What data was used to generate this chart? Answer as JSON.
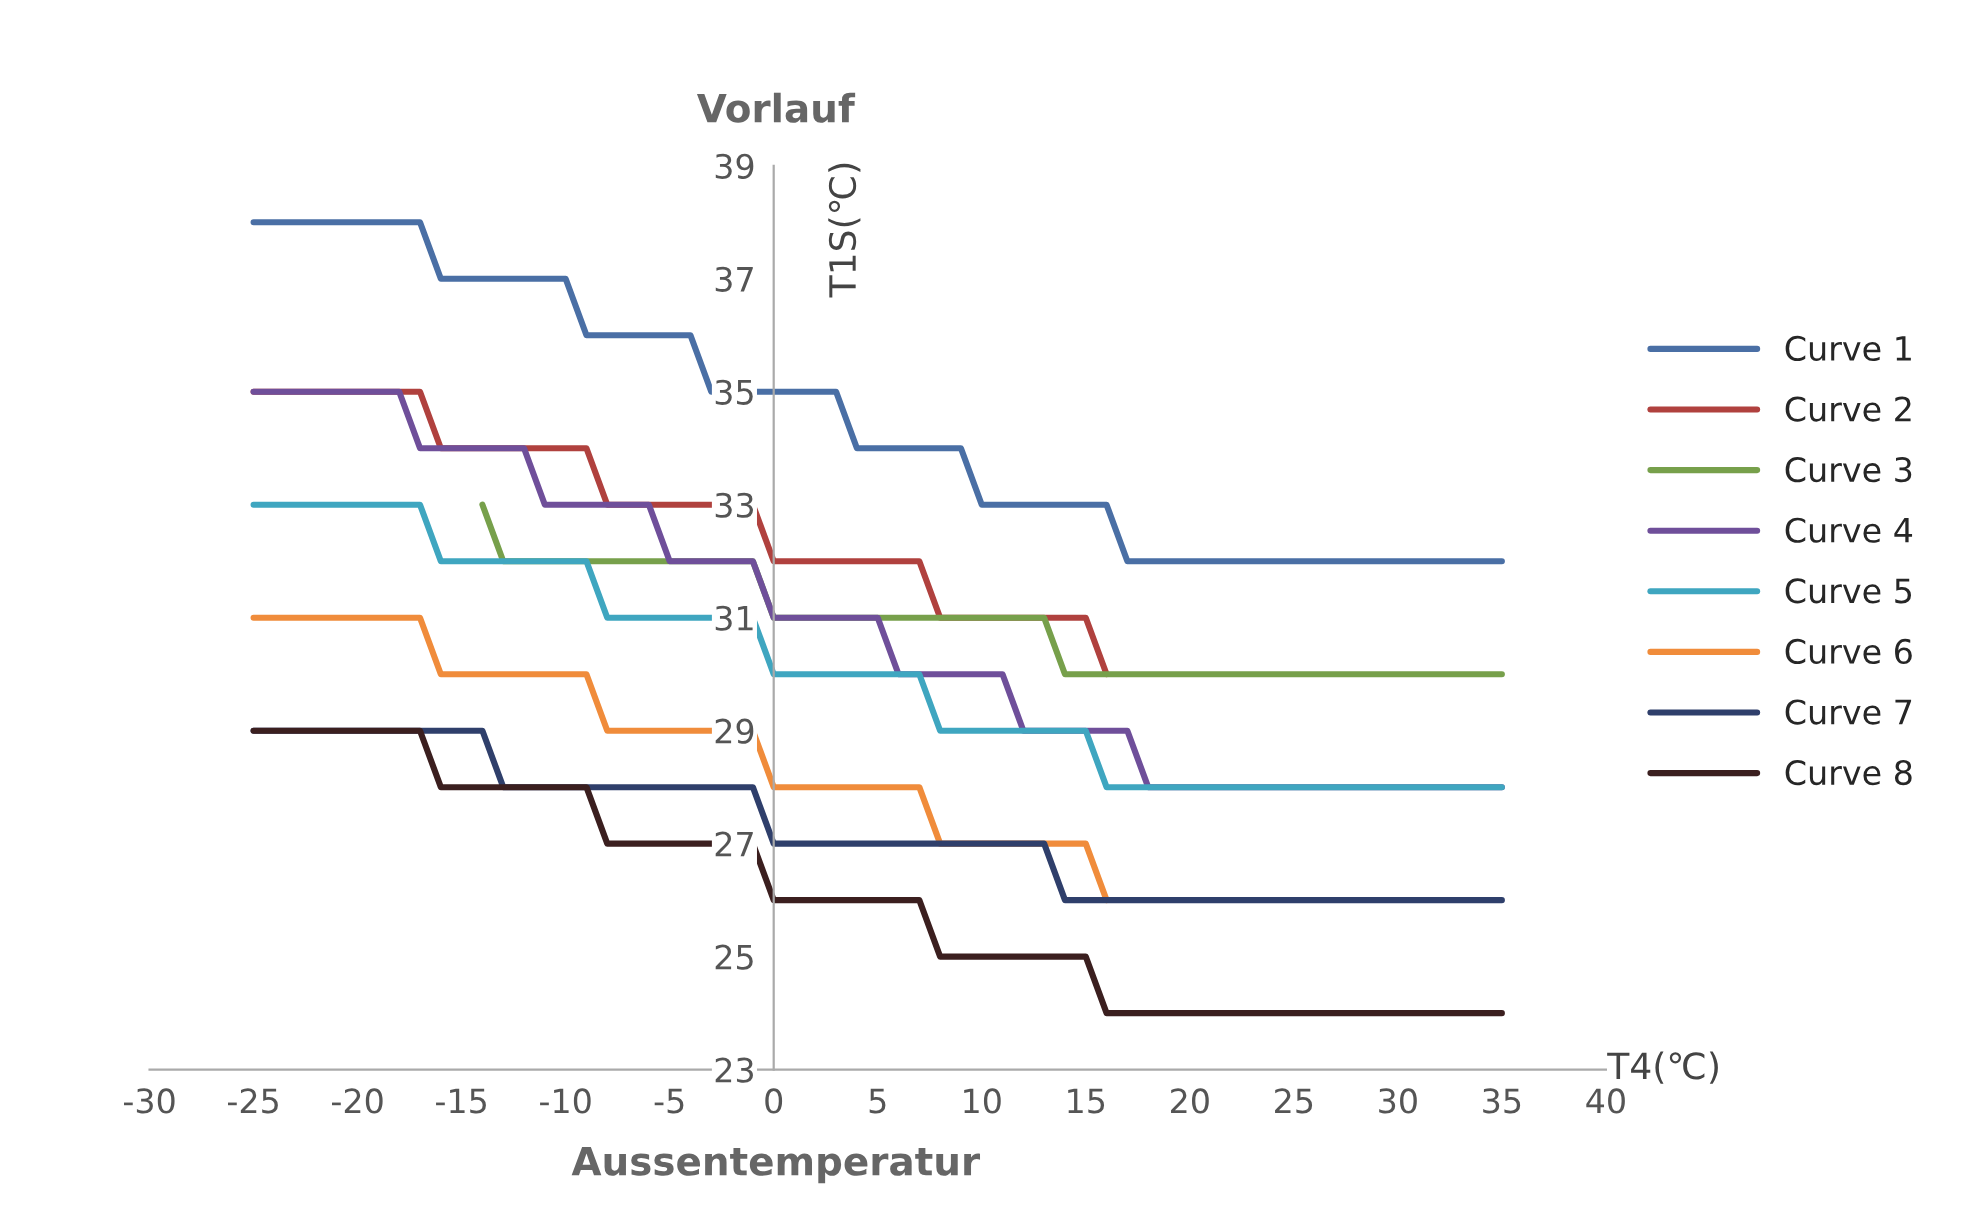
{
  "chart_data": {
    "type": "line",
    "xlabel": "T4(℃)",
    "ylabel": "T1S(℃)",
    "annotations": [
      "Vorlauf",
      "Aussentemperatur"
    ],
    "xlim": [
      -30,
      40
    ],
    "xticks": [
      -30,
      -25,
      -20,
      -15,
      -10,
      -5,
      0,
      5,
      10,
      15,
      20,
      25,
      30,
      35,
      40
    ],
    "ylim": [
      23,
      39
    ],
    "yticks": [
      23,
      25,
      27,
      29,
      31,
      33,
      35,
      37,
      39
    ],
    "grid": false,
    "legend": "right",
    "marker": "none",
    "line_style": "solid",
    "series": [
      {
        "name": "Curve 1",
        "color": "#4a6fa5",
        "x": [
          -25,
          -17,
          -16,
          -10,
          -9,
          -4,
          -3,
          3,
          4,
          9,
          10,
          16,
          17,
          35
        ],
        "values": [
          38,
          38,
          37,
          37,
          36,
          36,
          35,
          35,
          34,
          34,
          33,
          33,
          32,
          32
        ]
      },
      {
        "name": "Curve 2",
        "color": "#b0413e",
        "x": [
          -25,
          -17,
          -16,
          -9,
          -8,
          -1,
          0,
          7,
          8,
          15,
          16
        ],
        "values": [
          35,
          35,
          34,
          34,
          33,
          33,
          32,
          32,
          31,
          31,
          30
        ]
      },
      {
        "name": "Curve 3",
        "color": "#77a04b",
        "x": [
          -14,
          -13,
          -1,
          0,
          13,
          14,
          35
        ],
        "values": [
          33,
          32,
          32,
          31,
          31,
          30,
          30
        ]
      },
      {
        "name": "Curve 4",
        "color": "#6f4f9a",
        "x": [
          -25,
          -18,
          -17,
          -12,
          -11,
          -6,
          -5,
          -1,
          0,
          5,
          6,
          11,
          12,
          17,
          18,
          35
        ],
        "values": [
          35,
          35,
          34,
          34,
          33,
          33,
          32,
          32,
          31,
          31,
          30,
          30,
          29,
          29,
          28,
          28
        ]
      },
      {
        "name": "Curve 5",
        "color": "#3fa6c0",
        "x": [
          -25,
          -17,
          -16,
          -9,
          -8,
          -1,
          0,
          7,
          8,
          15,
          16,
          35
        ],
        "values": [
          33,
          33,
          32,
          32,
          31,
          31,
          30,
          30,
          29,
          29,
          28,
          28
        ]
      },
      {
        "name": "Curve 6",
        "color": "#f08c3b",
        "x": [
          -25,
          -17,
          -16,
          -9,
          -8,
          -1,
          0,
          7,
          8,
          15,
          16
        ],
        "values": [
          31,
          31,
          30,
          30,
          29,
          29,
          28,
          28,
          27,
          27,
          26
        ]
      },
      {
        "name": "Curve 7",
        "color": "#2f3f6b",
        "x": [
          -25,
          -14,
          -13,
          -1,
          0,
          13,
          14,
          35
        ],
        "values": [
          29,
          29,
          28,
          28,
          27,
          27,
          26,
          26
        ]
      },
      {
        "name": "Curve 8",
        "color": "#3b1f1f",
        "x": [
          -25,
          -17,
          -16,
          -9,
          -8,
          -1,
          0,
          7,
          8,
          15,
          16,
          35
        ],
        "values": [
          29,
          29,
          28,
          28,
          27,
          27,
          26,
          26,
          25,
          25,
          24,
          24
        ]
      }
    ]
  }
}
